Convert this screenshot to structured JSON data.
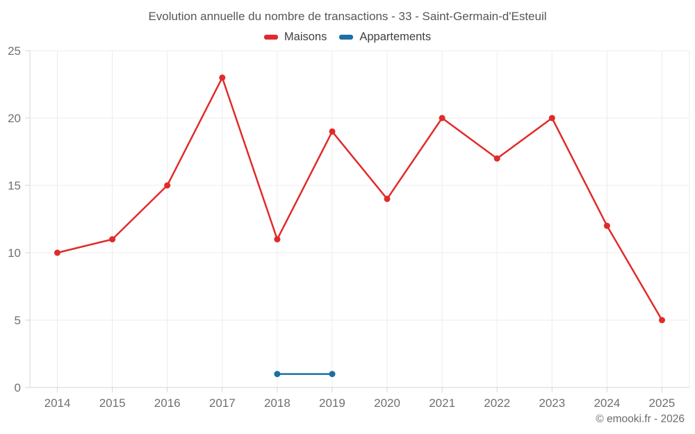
{
  "title": "Evolution annuelle du nombre de transactions - 33 - Saint-Germain-d'Esteuil",
  "legend": {
    "items": [
      {
        "label": "Maisons",
        "color": "#e12a2a"
      },
      {
        "label": "Appartements",
        "color": "#1d6fa5"
      }
    ]
  },
  "footer": {
    "credit": "© emooki.fr - 2026"
  },
  "colors": {
    "maisons": "#e12a2a",
    "appartements": "#1d6fa5",
    "gridline": "#ececec",
    "axis": "#d6d6d6",
    "axis_text": "#6f6f6f"
  },
  "chart_data": {
    "type": "line",
    "title": "Evolution annuelle du nombre de transactions - 33 - Saint-Germain-d'Esteuil",
    "categories": [
      "2014",
      "2015",
      "2016",
      "2017",
      "2018",
      "2019",
      "2020",
      "2021",
      "2022",
      "2023",
      "2024",
      "2025"
    ],
    "series": [
      {
        "name": "Maisons",
        "color": "#e12a2a",
        "values": [
          10,
          11,
          15,
          23,
          11,
          19,
          14,
          20,
          17,
          20,
          12,
          5
        ]
      },
      {
        "name": "Appartements",
        "color": "#1d6fa5",
        "values": [
          null,
          null,
          null,
          null,
          1,
          1,
          null,
          null,
          null,
          null,
          null,
          null
        ]
      }
    ],
    "xlabel": "",
    "ylabel": "",
    "ylim": [
      0,
      25
    ],
    "yticks": [
      0,
      5,
      10,
      15,
      20,
      25
    ],
    "grid": true,
    "legend_position": "top",
    "marker": "circle"
  }
}
